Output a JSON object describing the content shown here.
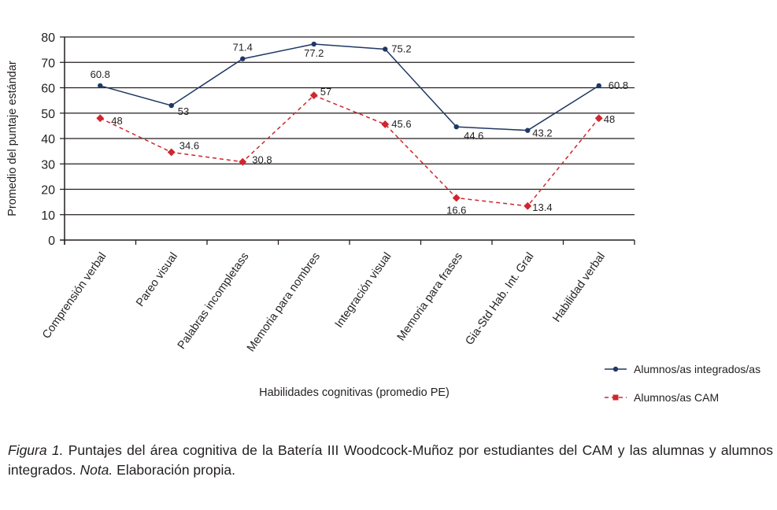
{
  "chart_data": {
    "type": "line",
    "title": "",
    "xlabel": "Habilidades cognitivas (promedio PE)",
    "ylabel": "Promedio del puntaje estándar",
    "ylim": [
      0,
      80
    ],
    "yticks": [
      0,
      10,
      20,
      30,
      40,
      50,
      60,
      70,
      80
    ],
    "grid": true,
    "legend_position": "bottom-right",
    "categories": [
      "Comprensión verbal",
      "Pareo visual",
      "Palabras incompletass",
      "Memoria para nombres",
      "Integración visual",
      "Memoria para frases",
      "Gia-Std Hab. Int. Gral",
      "Habilidad verbal"
    ],
    "series": [
      {
        "name": "Alumnos/as integrados/as",
        "values": [
          60.8,
          53,
          71.4,
          77.2,
          75.2,
          44.6,
          43.2,
          60.8
        ],
        "color": "#1f3864",
        "style": "solid",
        "marker": "circle"
      },
      {
        "name": "Alumnos/as CAM",
        "values": [
          48,
          34.6,
          30.8,
          57,
          45.6,
          16.6,
          13.4,
          48
        ],
        "color": "#d0262e",
        "style": "dashed",
        "marker": "square"
      }
    ]
  },
  "caption": {
    "figure_label": "Figura 1.",
    "text": " Puntajes del área cognitiva de la Batería III Woodcock-Muñoz por estudiantes del CAM y las alumnas y alumnos integrados. ",
    "note_label": "Nota.",
    "note_text": " Elaboración propia."
  }
}
